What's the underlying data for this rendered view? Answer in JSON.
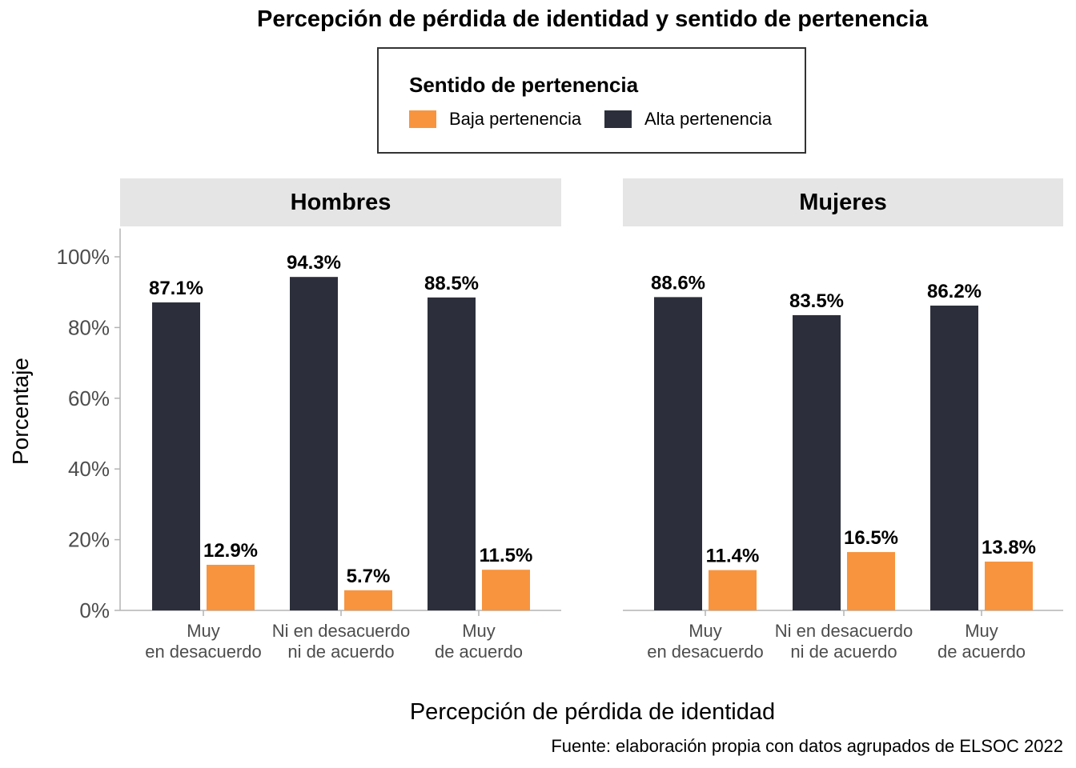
{
  "chart_data": {
    "type": "bar",
    "title": "Percepción de pérdida de identidad y sentido de pertenencia",
    "xlabel": "Percepción de pérdida de identidad",
    "ylabel": "Porcentaje",
    "caption": "Fuente: elaboración propia con datos agrupados de ELSOC 2022",
    "legend": {
      "title": "Sentido de pertenencia",
      "position": "top",
      "items": [
        {
          "label": "Baja pertenencia",
          "color": "#f8943e"
        },
        {
          "label": "Alta pertenencia",
          "color": "#2c2f3b"
        }
      ]
    },
    "ylim": [
      0,
      100
    ],
    "yticks": [
      "0%",
      "20%",
      "40%",
      "60%",
      "80%",
      "100%"
    ],
    "categories": [
      [
        "Muy",
        "en desacuerdo"
      ],
      [
        "Ni en desacuerdo",
        "ni de acuerdo"
      ],
      [
        "Muy",
        "de acuerdo"
      ]
    ],
    "panels": [
      {
        "name": "Hombres",
        "series": [
          {
            "name": "Alta pertenencia",
            "values": [
              87.1,
              94.3,
              88.5
            ],
            "labels": [
              "87.1%",
              "94.3%",
              "88.5%"
            ]
          },
          {
            "name": "Baja pertenencia",
            "values": [
              12.9,
              5.7,
              11.5
            ],
            "labels": [
              "12.9%",
              "5.7%",
              "11.5%"
            ]
          }
        ]
      },
      {
        "name": "Mujeres",
        "series": [
          {
            "name": "Alta pertenencia",
            "values": [
              88.6,
              83.5,
              86.2
            ],
            "labels": [
              "88.6%",
              "83.5%",
              "86.2%"
            ]
          },
          {
            "name": "Baja pertenencia",
            "values": [
              11.4,
              16.5,
              13.8
            ],
            "labels": [
              "11.4%",
              "16.5%",
              "13.8%"
            ]
          }
        ]
      }
    ]
  }
}
